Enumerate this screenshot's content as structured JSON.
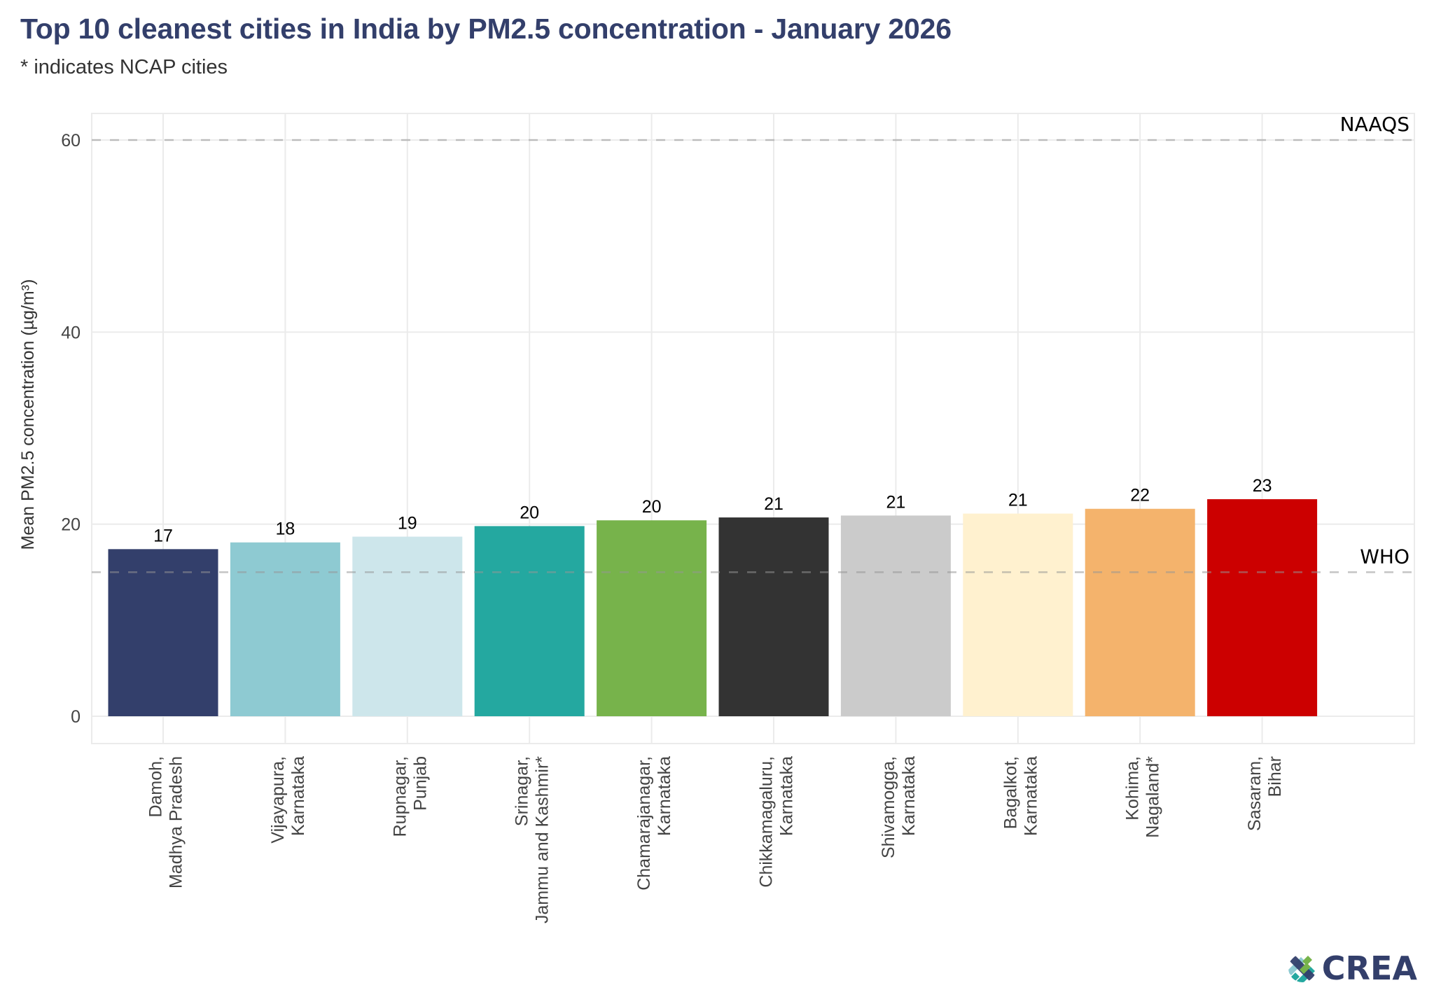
{
  "header": {
    "title": "Top 10 cleanest cities in India by PM2.5 concentration - January 2026",
    "subtitle": "* indicates NCAP cities"
  },
  "logo": {
    "text": "CREA",
    "colors": [
      "#333f6b",
      "#77b34b",
      "#24a8a0",
      "#8ecad2"
    ]
  },
  "chart_data": {
    "type": "bar",
    "title": "Top 10 cleanest cities in India by PM2.5 concentration - January 2026",
    "subtitle": "* indicates NCAP cities",
    "xlabel": "",
    "ylabel": "Mean PM2.5 concentration (µg/m³)",
    "ylim": [
      -3,
      63
    ],
    "yticks": [
      0,
      20,
      40,
      60
    ],
    "grid": true,
    "categories": [
      [
        "Damoh,",
        "Madhya Pradesh"
      ],
      [
        "Vijayapura,",
        "Karnataka"
      ],
      [
        "Rupnagar,",
        "Punjab"
      ],
      [
        "Srinagar,",
        "Jammu and Kashmir*"
      ],
      [
        "Chamarajanagar,",
        "Karnataka"
      ],
      [
        "Chikkamagaluru,",
        "Karnataka"
      ],
      [
        "Shivamogga,",
        "Karnataka"
      ],
      [
        "Bagalkot,",
        "Karnataka"
      ],
      [
        "Kohima,",
        "Nagaland*"
      ],
      [
        "Sasaram,",
        "Bihar"
      ]
    ],
    "values": [
      17.4,
      18.1,
      18.7,
      19.8,
      20.4,
      20.7,
      20.9,
      21.1,
      21.6,
      22.6
    ],
    "data_labels": [
      "17",
      "18",
      "19",
      "20",
      "20",
      "21",
      "21",
      "21",
      "22",
      "23"
    ],
    "colors": [
      "#333f6b",
      "#8ecad2",
      "#cde6eb",
      "#24a8a0",
      "#77b34b",
      "#333333",
      "#cbcbcb",
      "#fff1cf",
      "#f4b36c",
      "#cc0000"
    ],
    "reference_lines": [
      {
        "name": "NAAQS",
        "value": 60
      },
      {
        "name": "WHO",
        "value": 15
      }
    ]
  }
}
